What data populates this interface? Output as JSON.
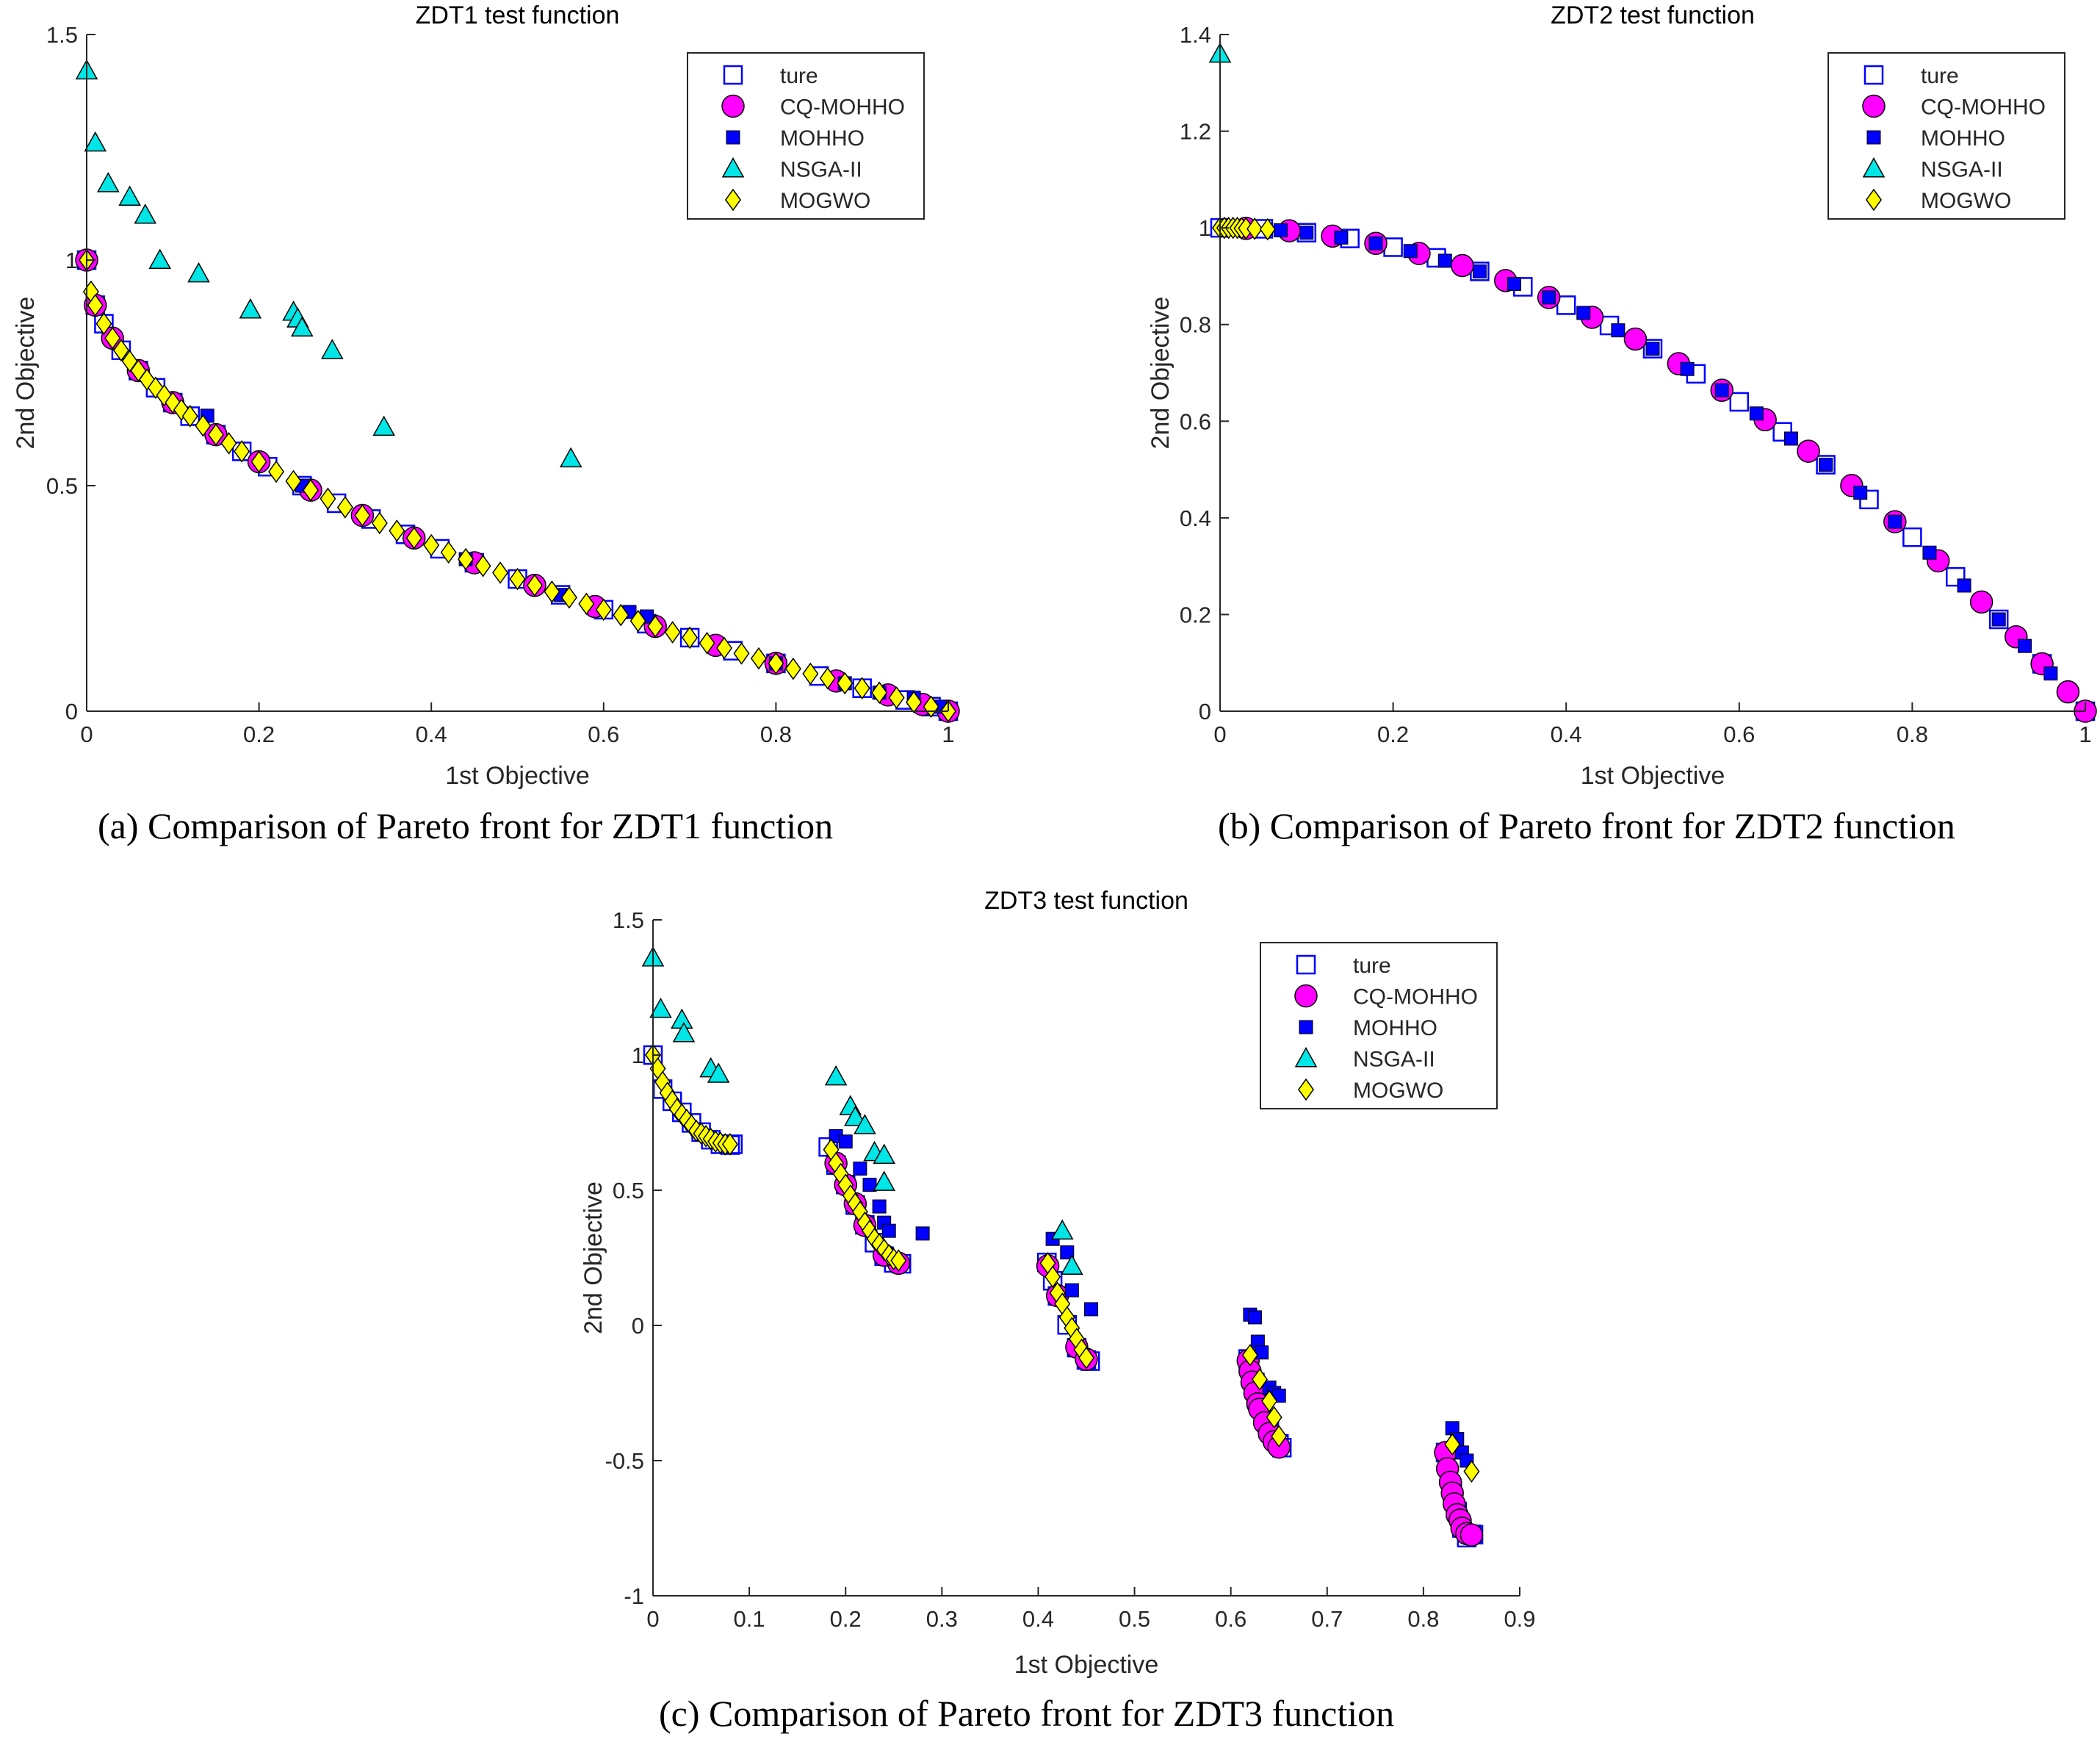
{
  "figure": {
    "legend_entries": [
      "ture",
      "CQ-MOHHO",
      "MOHHO",
      "NSGA-II",
      "MOGWO"
    ]
  },
  "captions": {
    "a": "(a) Comparison of Pareto front for ZDT1 function",
    "b": "(b) Comparison of Pareto front for ZDT2 function",
    "c": "(c) Comparison of Pareto front for ZDT3 function"
  },
  "colors": {
    "true_front": "#0000ff",
    "cq_mohho": "#ff00ff",
    "mohho": "#0000ff",
    "nsga_ii": "#00e5e5",
    "mogwo": "#ffff00",
    "axis": "#262626"
  },
  "chart_data": [
    {
      "id": "zdt1",
      "type": "scatter",
      "title": "ZDT1 test function",
      "xlabel": "1st Objective",
      "ylabel": "2nd Objective",
      "xlim": [
        0,
        1
      ],
      "ylim": [
        0,
        1.5
      ],
      "xticks": [
        0,
        0.2,
        0.4,
        0.6,
        0.8,
        1
      ],
      "yticks": [
        0,
        0.5,
        1,
        1.5
      ],
      "xtick_labels": [
        "0",
        "0.2",
        "0.4",
        "0.6",
        "0.8",
        "1"
      ],
      "ytick_labels": [
        "0",
        "0.5",
        "1",
        "1.5"
      ],
      "legend": "top-right",
      "series": [
        {
          "name": "ture",
          "marker": "square",
          "x": [
            0,
            0.01,
            0.02,
            0.04,
            0.06,
            0.08,
            0.1,
            0.12,
            0.15,
            0.18,
            0.21,
            0.25,
            0.29,
            0.33,
            0.37,
            0.41,
            0.45,
            0.5,
            0.55,
            0.6,
            0.65,
            0.7,
            0.75,
            0.8,
            0.85,
            0.9,
            0.95,
            0.98,
            1
          ],
          "y": [
            1,
            0.9,
            0.859,
            0.8,
            0.755,
            0.717,
            0.684,
            0.654,
            0.613,
            0.576,
            0.542,
            0.5,
            0.461,
            0.426,
            0.392,
            0.36,
            0.329,
            0.293,
            0.258,
            0.225,
            0.194,
            0.163,
            0.134,
            0.106,
            0.078,
            0.051,
            0.025,
            0.01,
            0
          ]
        },
        {
          "name": "CQ-MOHHO",
          "marker": "circle",
          "x": [
            0,
            0.01,
            0.03,
            0.06,
            0.1,
            0.15,
            0.2,
            0.26,
            0.32,
            0.38,
            0.45,
            0.52,
            0.59,
            0.66,
            0.73,
            0.8,
            0.87,
            0.93,
            0.97,
            1
          ],
          "y": [
            1,
            0.9,
            0.827,
            0.755,
            0.684,
            0.613,
            0.553,
            0.49,
            0.434,
            0.384,
            0.329,
            0.279,
            0.232,
            0.188,
            0.146,
            0.106,
            0.067,
            0.036,
            0.015,
            0
          ]
        },
        {
          "name": "MOHHO",
          "marker": "filled-square",
          "x": [
            0.14,
            0.25,
            0.44,
            0.55,
            0.63,
            0.65,
            0.8,
            0.88,
            0.92,
            0.96,
            0.99
          ],
          "y": [
            0.655,
            0.5,
            0.337,
            0.258,
            0.22,
            0.21,
            0.106,
            0.062,
            0.041,
            0.03,
            0.01
          ]
        },
        {
          "name": "NSGA-II",
          "marker": "triangle",
          "x": [
            0,
            0.01,
            0.025,
            0.05,
            0.068,
            0.085,
            0.13,
            0.19,
            0.24,
            0.245,
            0.25,
            0.285,
            0.345,
            0.562
          ],
          "y": [
            1.42,
            1.26,
            1.17,
            1.14,
            1.1,
            1.0,
            0.97,
            0.89,
            0.885,
            0.87,
            0.85,
            0.8,
            0.63,
            0.56
          ]
        },
        {
          "name": "MOGWO",
          "marker": "diamond",
          "x": [
            0,
            0.005,
            0.01,
            0.02,
            0.03,
            0.04,
            0.05,
            0.06,
            0.07,
            0.08,
            0.09,
            0.1,
            0.11,
            0.12,
            0.135,
            0.15,
            0.165,
            0.18,
            0.2,
            0.22,
            0.24,
            0.26,
            0.28,
            0.3,
            0.32,
            0.34,
            0.36,
            0.38,
            0.4,
            0.42,
            0.44,
            0.46,
            0.48,
            0.5,
            0.52,
            0.54,
            0.56,
            0.58,
            0.6,
            0.62,
            0.64,
            0.66,
            0.68,
            0.7,
            0.72,
            0.74,
            0.76,
            0.78,
            0.8,
            0.82,
            0.84,
            0.86,
            0.88,
            0.9,
            0.92,
            0.94,
            0.96,
            0.98,
            1
          ],
          "y": [
            1,
            0.93,
            0.9,
            0.859,
            0.827,
            0.8,
            0.776,
            0.755,
            0.735,
            0.717,
            0.7,
            0.684,
            0.668,
            0.654,
            0.633,
            0.613,
            0.594,
            0.576,
            0.553,
            0.531,
            0.51,
            0.49,
            0.471,
            0.452,
            0.434,
            0.417,
            0.4,
            0.384,
            0.368,
            0.352,
            0.337,
            0.322,
            0.307,
            0.293,
            0.279,
            0.265,
            0.252,
            0.238,
            0.225,
            0.213,
            0.2,
            0.188,
            0.175,
            0.163,
            0.151,
            0.14,
            0.128,
            0.117,
            0.106,
            0.094,
            0.083,
            0.073,
            0.062,
            0.051,
            0.041,
            0.03,
            0.02,
            0.01,
            0
          ]
        }
      ]
    },
    {
      "id": "zdt2",
      "type": "scatter",
      "title": "ZDT2 test function",
      "xlabel": "1st Objective",
      "ylabel": "2nd Objective",
      "xlim": [
        0,
        1
      ],
      "ylim": [
        0,
        1.4
      ],
      "xticks": [
        0,
        0.2,
        0.4,
        0.6,
        0.8,
        1
      ],
      "yticks": [
        0,
        0.2,
        0.4,
        0.6,
        0.8,
        1,
        1.2,
        1.4
      ],
      "xtick_labels": [
        "0",
        "0.2",
        "0.4",
        "0.6",
        "0.8",
        "1"
      ],
      "ytick_labels": [
        "0",
        "0.2",
        "0.4",
        "0.6",
        "0.8",
        "1",
        "1.2",
        "1.4"
      ],
      "legend": "top-right",
      "series": [
        {
          "name": "ture",
          "marker": "square",
          "x": [
            0,
            0.05,
            0.1,
            0.15,
            0.2,
            0.25,
            0.3,
            0.35,
            0.4,
            0.45,
            0.5,
            0.55,
            0.6,
            0.65,
            0.7,
            0.75,
            0.8,
            0.85,
            0.9,
            0.95,
            1
          ],
          "y": [
            1,
            0.998,
            0.99,
            0.978,
            0.96,
            0.938,
            0.91,
            0.878,
            0.84,
            0.798,
            0.75,
            0.698,
            0.64,
            0.578,
            0.51,
            0.438,
            0.36,
            0.278,
            0.19,
            0.098,
            0
          ]
        },
        {
          "name": "CQ-MOHHO",
          "marker": "circle",
          "x": [
            0.03,
            0.08,
            0.13,
            0.18,
            0.23,
            0.28,
            0.33,
            0.38,
            0.43,
            0.48,
            0.53,
            0.58,
            0.63,
            0.68,
            0.73,
            0.78,
            0.83,
            0.88,
            0.92,
            0.95,
            0.98,
            1
          ],
          "y": [
            0.999,
            0.994,
            0.983,
            0.968,
            0.947,
            0.922,
            0.891,
            0.856,
            0.815,
            0.77,
            0.719,
            0.664,
            0.603,
            0.538,
            0.467,
            0.392,
            0.311,
            0.226,
            0.154,
            0.098,
            0.04,
            0
          ]
        },
        {
          "name": "MOHHO",
          "marker": "filled-square",
          "x": [
            0.07,
            0.1,
            0.14,
            0.18,
            0.22,
            0.26,
            0.3,
            0.34,
            0.38,
            0.42,
            0.46,
            0.5,
            0.54,
            0.58,
            0.62,
            0.66,
            0.7,
            0.74,
            0.78,
            0.82,
            0.86,
            0.9,
            0.93,
            0.96
          ],
          "y": [
            0.995,
            0.99,
            0.98,
            0.968,
            0.952,
            0.932,
            0.91,
            0.884,
            0.856,
            0.824,
            0.788,
            0.75,
            0.708,
            0.664,
            0.616,
            0.564,
            0.51,
            0.452,
            0.392,
            0.328,
            0.26,
            0.19,
            0.135,
            0.078
          ]
        },
        {
          "name": "NSGA-II",
          "marker": "triangle",
          "x": [
            0
          ],
          "y": [
            1.36
          ]
        },
        {
          "name": "MOGWO",
          "marker": "diamond",
          "x": [
            0,
            0.005,
            0.01,
            0.015,
            0.02,
            0.025,
            0.03,
            0.04,
            0.055
          ],
          "y": [
            1,
            1,
            1,
            1,
            1,
            0.999,
            0.999,
            0.998,
            0.997
          ]
        }
      ]
    },
    {
      "id": "zdt3",
      "type": "scatter",
      "title": "ZDT3 test function",
      "xlabel": "1st Objective",
      "ylabel": "2nd Objective",
      "xlim": [
        0,
        0.9
      ],
      "ylim": [
        -1,
        1.5
      ],
      "xticks": [
        0,
        0.1,
        0.2,
        0.3,
        0.4,
        0.5,
        0.6,
        0.7,
        0.8,
        0.9
      ],
      "yticks": [
        -1,
        -0.5,
        0,
        0.5,
        1,
        1.5
      ],
      "xtick_labels": [
        "0",
        "0.1",
        "0.2",
        "0.3",
        "0.4",
        "0.5",
        "0.6",
        "0.7",
        "0.8",
        "0.9"
      ],
      "ytick_labels": [
        "-1",
        "-0.5",
        "0",
        "0.5",
        "1",
        "1.5"
      ],
      "legend": "top-right",
      "series": [
        {
          "name": "ture",
          "marker": "square",
          "x": [
            0,
            0.01,
            0.02,
            0.03,
            0.04,
            0.05,
            0.06,
            0.07,
            0.08,
            0.083,
            0.182,
            0.19,
            0.2,
            0.21,
            0.22,
            0.23,
            0.24,
            0.25,
            0.258,
            0.409,
            0.415,
            0.42,
            0.43,
            0.44,
            0.45,
            0.454,
            0.618,
            0.625,
            0.63,
            0.64,
            0.65,
            0.653,
            0.823,
            0.83,
            0.835,
            0.84,
            0.845,
            0.85,
            0.852
          ],
          "y": [
            1,
            0.874,
            0.829,
            0.788,
            0.749,
            0.715,
            0.687,
            0.67,
            0.667,
            0.67,
            0.66,
            0.593,
            0.521,
            0.445,
            0.372,
            0.306,
            0.256,
            0.231,
            0.228,
            0.233,
            0.165,
            0.109,
            0.002,
            -0.082,
            -0.128,
            -0.132,
            -0.124,
            -0.211,
            -0.271,
            -0.368,
            -0.438,
            -0.452,
            -0.47,
            -0.612,
            -0.688,
            -0.749,
            -0.785,
            -0.773,
            -0.774
          ]
        },
        {
          "name": "CQ-MOHHO",
          "marker": "circle",
          "x": [
            0.19,
            0.2,
            0.21,
            0.22,
            0.24,
            0.255,
            0.41,
            0.42,
            0.44,
            0.45,
            0.618,
            0.62,
            0.622,
            0.625,
            0.628,
            0.63,
            0.635,
            0.64,
            0.645,
            0.65,
            0.823,
            0.825,
            0.828,
            0.83,
            0.832,
            0.835,
            0.838,
            0.84,
            0.845,
            0.85
          ],
          "y": [
            0.6,
            0.52,
            0.45,
            0.37,
            0.26,
            0.23,
            0.22,
            0.11,
            -0.08,
            -0.125,
            -0.13,
            -0.17,
            -0.21,
            -0.25,
            -0.29,
            -0.31,
            -0.36,
            -0.4,
            -0.43,
            -0.45,
            -0.47,
            -0.53,
            -0.58,
            -0.62,
            -0.66,
            -0.7,
            -0.72,
            -0.75,
            -0.77,
            -0.775
          ]
        },
        {
          "name": "MOHHO",
          "marker": "filled-square",
          "x": [
            0.19,
            0.2,
            0.215,
            0.225,
            0.235,
            0.24,
            0.245,
            0.28,
            0.415,
            0.43,
            0.435,
            0.455,
            0.62,
            0.625,
            0.628,
            0.632,
            0.64,
            0.645,
            0.65,
            0.83,
            0.835,
            0.84,
            0.845
          ],
          "y": [
            0.7,
            0.68,
            0.58,
            0.52,
            0.44,
            0.38,
            0.35,
            0.34,
            0.32,
            0.27,
            0.13,
            0.06,
            0.04,
            0.03,
            -0.06,
            -0.1,
            -0.23,
            -0.25,
            -0.26,
            -0.38,
            -0.42,
            -0.47,
            -0.5
          ]
        },
        {
          "name": "NSGA-II",
          "marker": "triangle",
          "x": [
            0,
            0.008,
            0.03,
            0.032,
            0.06,
            0.068,
            0.19,
            0.205,
            0.21,
            0.22,
            0.23,
            0.24,
            0.24,
            0.425,
            0.435
          ],
          "y": [
            1.36,
            1.17,
            1.13,
            1.08,
            0.95,
            0.93,
            0.92,
            0.81,
            0.77,
            0.74,
            0.64,
            0.63,
            0.53,
            0.35,
            0.22
          ]
        },
        {
          "name": "MOGWO",
          "marker": "diamond",
          "x": [
            0,
            0.005,
            0.01,
            0.015,
            0.02,
            0.025,
            0.03,
            0.035,
            0.04,
            0.045,
            0.05,
            0.055,
            0.06,
            0.065,
            0.07,
            0.075,
            0.08,
            0.185,
            0.19,
            0.195,
            0.2,
            0.205,
            0.21,
            0.215,
            0.22,
            0.225,
            0.23,
            0.235,
            0.24,
            0.245,
            0.25,
            0.255,
            0.41,
            0.415,
            0.42,
            0.425,
            0.43,
            0.435,
            0.44,
            0.445,
            0.45,
            0.62,
            0.63,
            0.64,
            0.645,
            0.65,
            0.83,
            0.85
          ],
          "y": [
            1,
            0.95,
            0.9,
            0.86,
            0.83,
            0.8,
            0.78,
            0.76,
            0.74,
            0.72,
            0.71,
            0.7,
            0.69,
            0.68,
            0.675,
            0.67,
            0.67,
            0.65,
            0.6,
            0.56,
            0.52,
            0.48,
            0.45,
            0.42,
            0.38,
            0.35,
            0.32,
            0.3,
            0.28,
            0.26,
            0.245,
            0.24,
            0.23,
            0.18,
            0.12,
            0.08,
            0.03,
            -0.01,
            -0.05,
            -0.09,
            -0.12,
            -0.11,
            -0.2,
            -0.28,
            -0.34,
            -0.41,
            -0.44,
            -0.54
          ]
        }
      ]
    }
  ]
}
